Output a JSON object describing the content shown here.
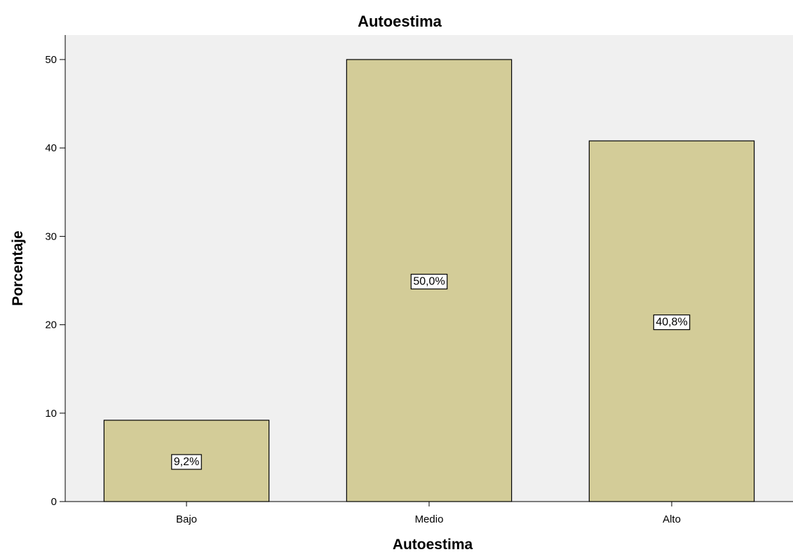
{
  "chart_data": {
    "type": "bar",
    "title": "Autoestima",
    "xlabel": "Autoestima",
    "ylabel": "Porcentaje",
    "categories": [
      "Bajo",
      "Medio",
      "Alto"
    ],
    "values": [
      9.2,
      50.0,
      40.8
    ],
    "data_labels": [
      "9,2%",
      "50,0%",
      "40,8%"
    ],
    "yticks": [
      0,
      10,
      20,
      30,
      40,
      50
    ],
    "ylim": [
      0,
      50
    ],
    "grid": false,
    "legend": "none",
    "colors": {
      "bar_fill": "#d3cc98",
      "bar_stroke": "#000000",
      "plot_background": "#f0f0f0",
      "page_background": "#ffffff"
    }
  }
}
